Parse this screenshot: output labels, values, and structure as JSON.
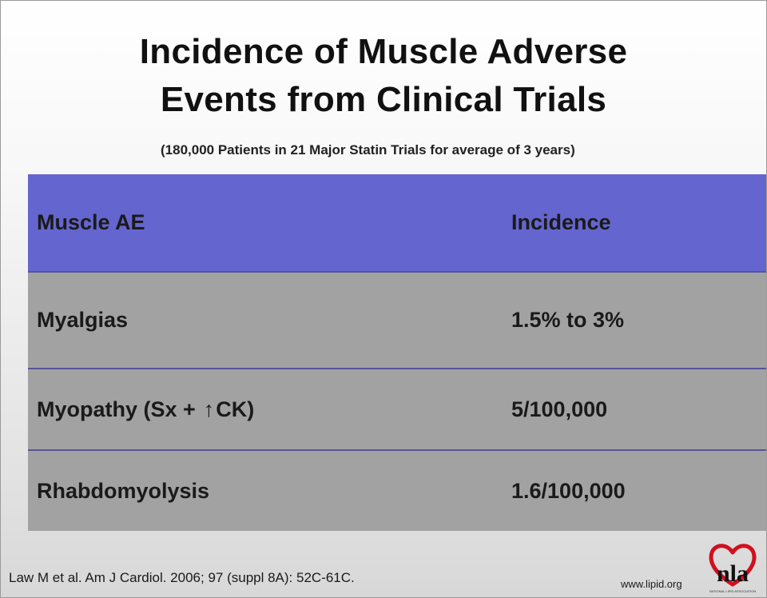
{
  "slide": {
    "title_line1": "Incidence of Muscle Adverse",
    "title_line2": "Events from Clinical Trials",
    "subtitle": "(180,000 Patients in 21 Major Statin Trials for average of 3 years)"
  },
  "table": {
    "headers": [
      "Muscle AE",
      "Incidence"
    ],
    "rows": [
      {
        "ae": "Myalgias",
        "incidence": "1.5% to 3%"
      },
      {
        "ae_prefix": "Myopathy (Sx +",
        "ae_arrow": "↑",
        "ae_suffix": "CK)",
        "incidence": "5/100,000"
      },
      {
        "ae": "Rhabdomyolysis",
        "incidence": "1.6/100,000"
      }
    ]
  },
  "footer": {
    "citation": "Law M et al.  Am J Cardiol. 2006; 97 (suppl 8A): 52C-61C.",
    "website": "www.lipid.org"
  },
  "logo": {
    "text": "nla",
    "org_name": "NATIONAL LIPID ASSOCIATION"
  },
  "colors": {
    "header_row": "#6565cf",
    "body_rows": "#a2a2a2",
    "logo_heart": "#d0101e"
  }
}
